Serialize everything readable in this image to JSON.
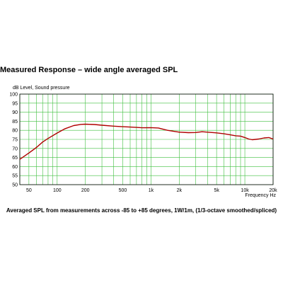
{
  "heading": "Measured  Response  – wide angle  averaged  SPL",
  "caption": "Averaged  SPL from measurements across  -85 to +85 degrees,  1W/1m, (1/3-octave smoothed/spliced)",
  "chart_data": {
    "type": "line",
    "title": "Measured  Response  – wide angle  averaged  SPL",
    "ylabel": "dB  Level, Sound pressure",
    "xlabel": "Frequency  Hz",
    "x_scale": "log",
    "xlim": [
      40,
      20000
    ],
    "ylim": [
      50,
      100
    ],
    "grid": true,
    "x_tick_labels": [
      {
        "value": 50,
        "label": "50"
      },
      {
        "value": 100,
        "label": "100"
      },
      {
        "value": 200,
        "label": "200"
      },
      {
        "value": 500,
        "label": "500"
      },
      {
        "value": 1000,
        "label": "1k"
      },
      {
        "value": 2000,
        "label": "2k"
      },
      {
        "value": 5000,
        "label": "5k"
      },
      {
        "value": 10000,
        "label": "10k"
      },
      {
        "value": 20000,
        "label": "20k"
      }
    ],
    "y_ticks": [
      50,
      55,
      60,
      65,
      70,
      75,
      80,
      85,
      90,
      95,
      100
    ],
    "colors": {
      "grid": "#3fbf3f",
      "line": "#b00000",
      "frame": "#000000"
    },
    "series": [
      {
        "x": [
          40,
          50,
          60,
          70,
          80,
          100,
          120,
          150,
          180,
          200,
          250,
          300,
          400,
          500,
          600,
          700,
          800,
          1000,
          1200,
          1500,
          2000,
          2500,
          3000,
          3500,
          4000,
          5000,
          6000,
          7000,
          8000,
          9000,
          10000,
          11000,
          12000,
          14000,
          16000,
          18000,
          20000
        ],
        "y": [
          64,
          67.5,
          70.5,
          73.5,
          75.5,
          78.5,
          80.8,
          82.6,
          83.3,
          83.4,
          83.2,
          82.8,
          82.3,
          82.0,
          81.8,
          81.6,
          81.4,
          81.5,
          81.3,
          80.0,
          79.0,
          78.7,
          78.8,
          79.2,
          79.0,
          78.6,
          78.1,
          77.5,
          77.0,
          76.8,
          76.0,
          75.2,
          74.8,
          75.2,
          75.8,
          76.0,
          75.2
        ]
      }
    ]
  }
}
